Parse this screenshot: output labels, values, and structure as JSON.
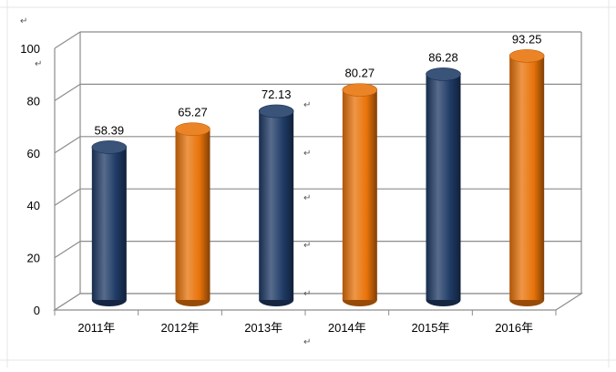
{
  "chart_data": {
    "type": "bar",
    "title": "",
    "xlabel": "",
    "ylabel": "",
    "categories": [
      "2011年",
      "2012年",
      "2013年",
      "2014年",
      "2015年",
      "2016年"
    ],
    "values": [
      58.39,
      65.27,
      72.13,
      80.27,
      86.28,
      93.25
    ],
    "value_labels": [
      "58.39",
      "65.27",
      "72.13",
      "80.27",
      "86.28",
      "93.25"
    ],
    "ylim": [
      0,
      100
    ],
    "yticks": [
      0,
      20,
      40,
      60,
      80,
      100
    ],
    "ytick_labels": [
      "0",
      "20",
      "40",
      "60",
      "80",
      "100"
    ],
    "grid": true,
    "bar_style": "3d-cylinder",
    "bar_colors": [
      "#1f3b66",
      "#e8730a",
      "#1f3b66",
      "#e8730a",
      "#1f3b66",
      "#e8730a"
    ]
  },
  "colors": {
    "navy": "#1f3b66",
    "orange": "#e8730a",
    "grid": "#8c8c8c",
    "axis_text": "#000000"
  },
  "marks": {
    "return_mark": "↵"
  }
}
